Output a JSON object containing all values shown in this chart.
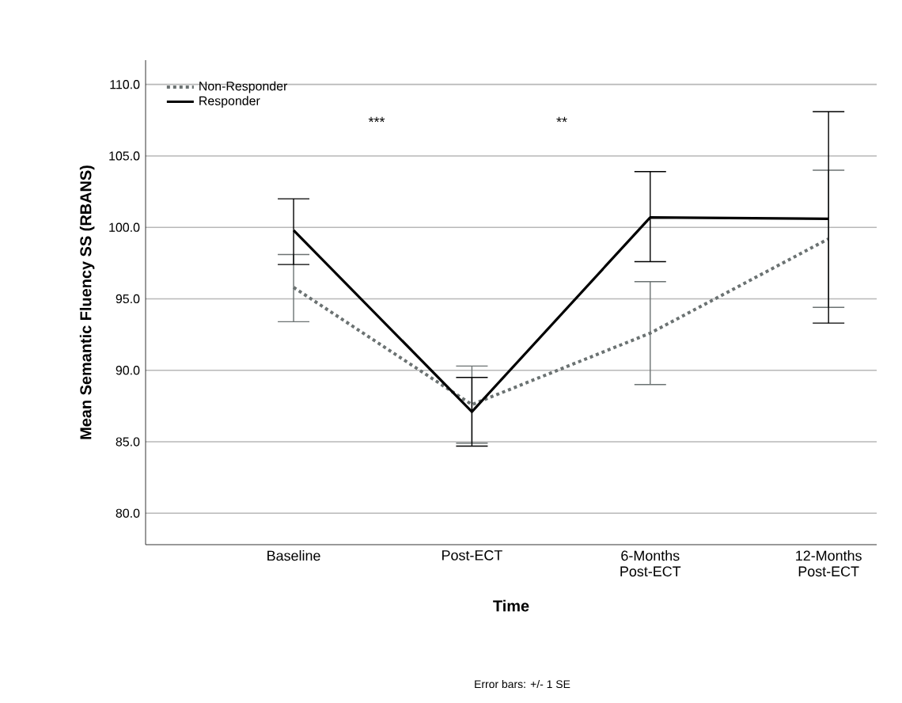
{
  "chart_data": {
    "type": "line",
    "xlabel": "Time",
    "ylabel": "Mean Semantic Fluency SS (RBANS)",
    "categories": [
      "Baseline",
      "Post-ECT",
      "6-Months Post-ECT",
      "12-Months Post-ECT"
    ],
    "series": [
      {
        "name": "Non-Responder",
        "color": "#6b7272",
        "line_style": "dotted",
        "values": [
          95.8,
          87.6,
          92.6,
          99.2
        ],
        "errors": [
          [
            93.4,
            98.1
          ],
          [
            84.9,
            90.3
          ],
          [
            89.0,
            96.2
          ],
          [
            94.4,
            104.0
          ]
        ]
      },
      {
        "name": "Responder",
        "color": "#000000",
        "line_style": "solid",
        "values": [
          99.8,
          87.1,
          100.7,
          100.6
        ],
        "errors": [
          [
            97.4,
            102.0
          ],
          [
            84.7,
            89.5
          ],
          [
            97.6,
            103.9
          ],
          [
            93.3,
            108.1
          ]
        ]
      }
    ],
    "ylim": [
      77.8,
      111.7
    ],
    "yticks": [
      {
        "value": 80,
        "label": "80.0"
      },
      {
        "value": 85,
        "label": "85.0"
      },
      {
        "value": 90,
        "label": "90.0"
      },
      {
        "value": 95,
        "label": "95.0"
      },
      {
        "value": 100,
        "label": "100.0"
      },
      {
        "value": 105,
        "label": "105.0"
      },
      {
        "value": 110,
        "label": "110.0"
      }
    ],
    "grid": "y",
    "legend": "top left",
    "annotations": [
      "***",
      "**",
      "Error bars: +/- 1 SE"
    ]
  }
}
